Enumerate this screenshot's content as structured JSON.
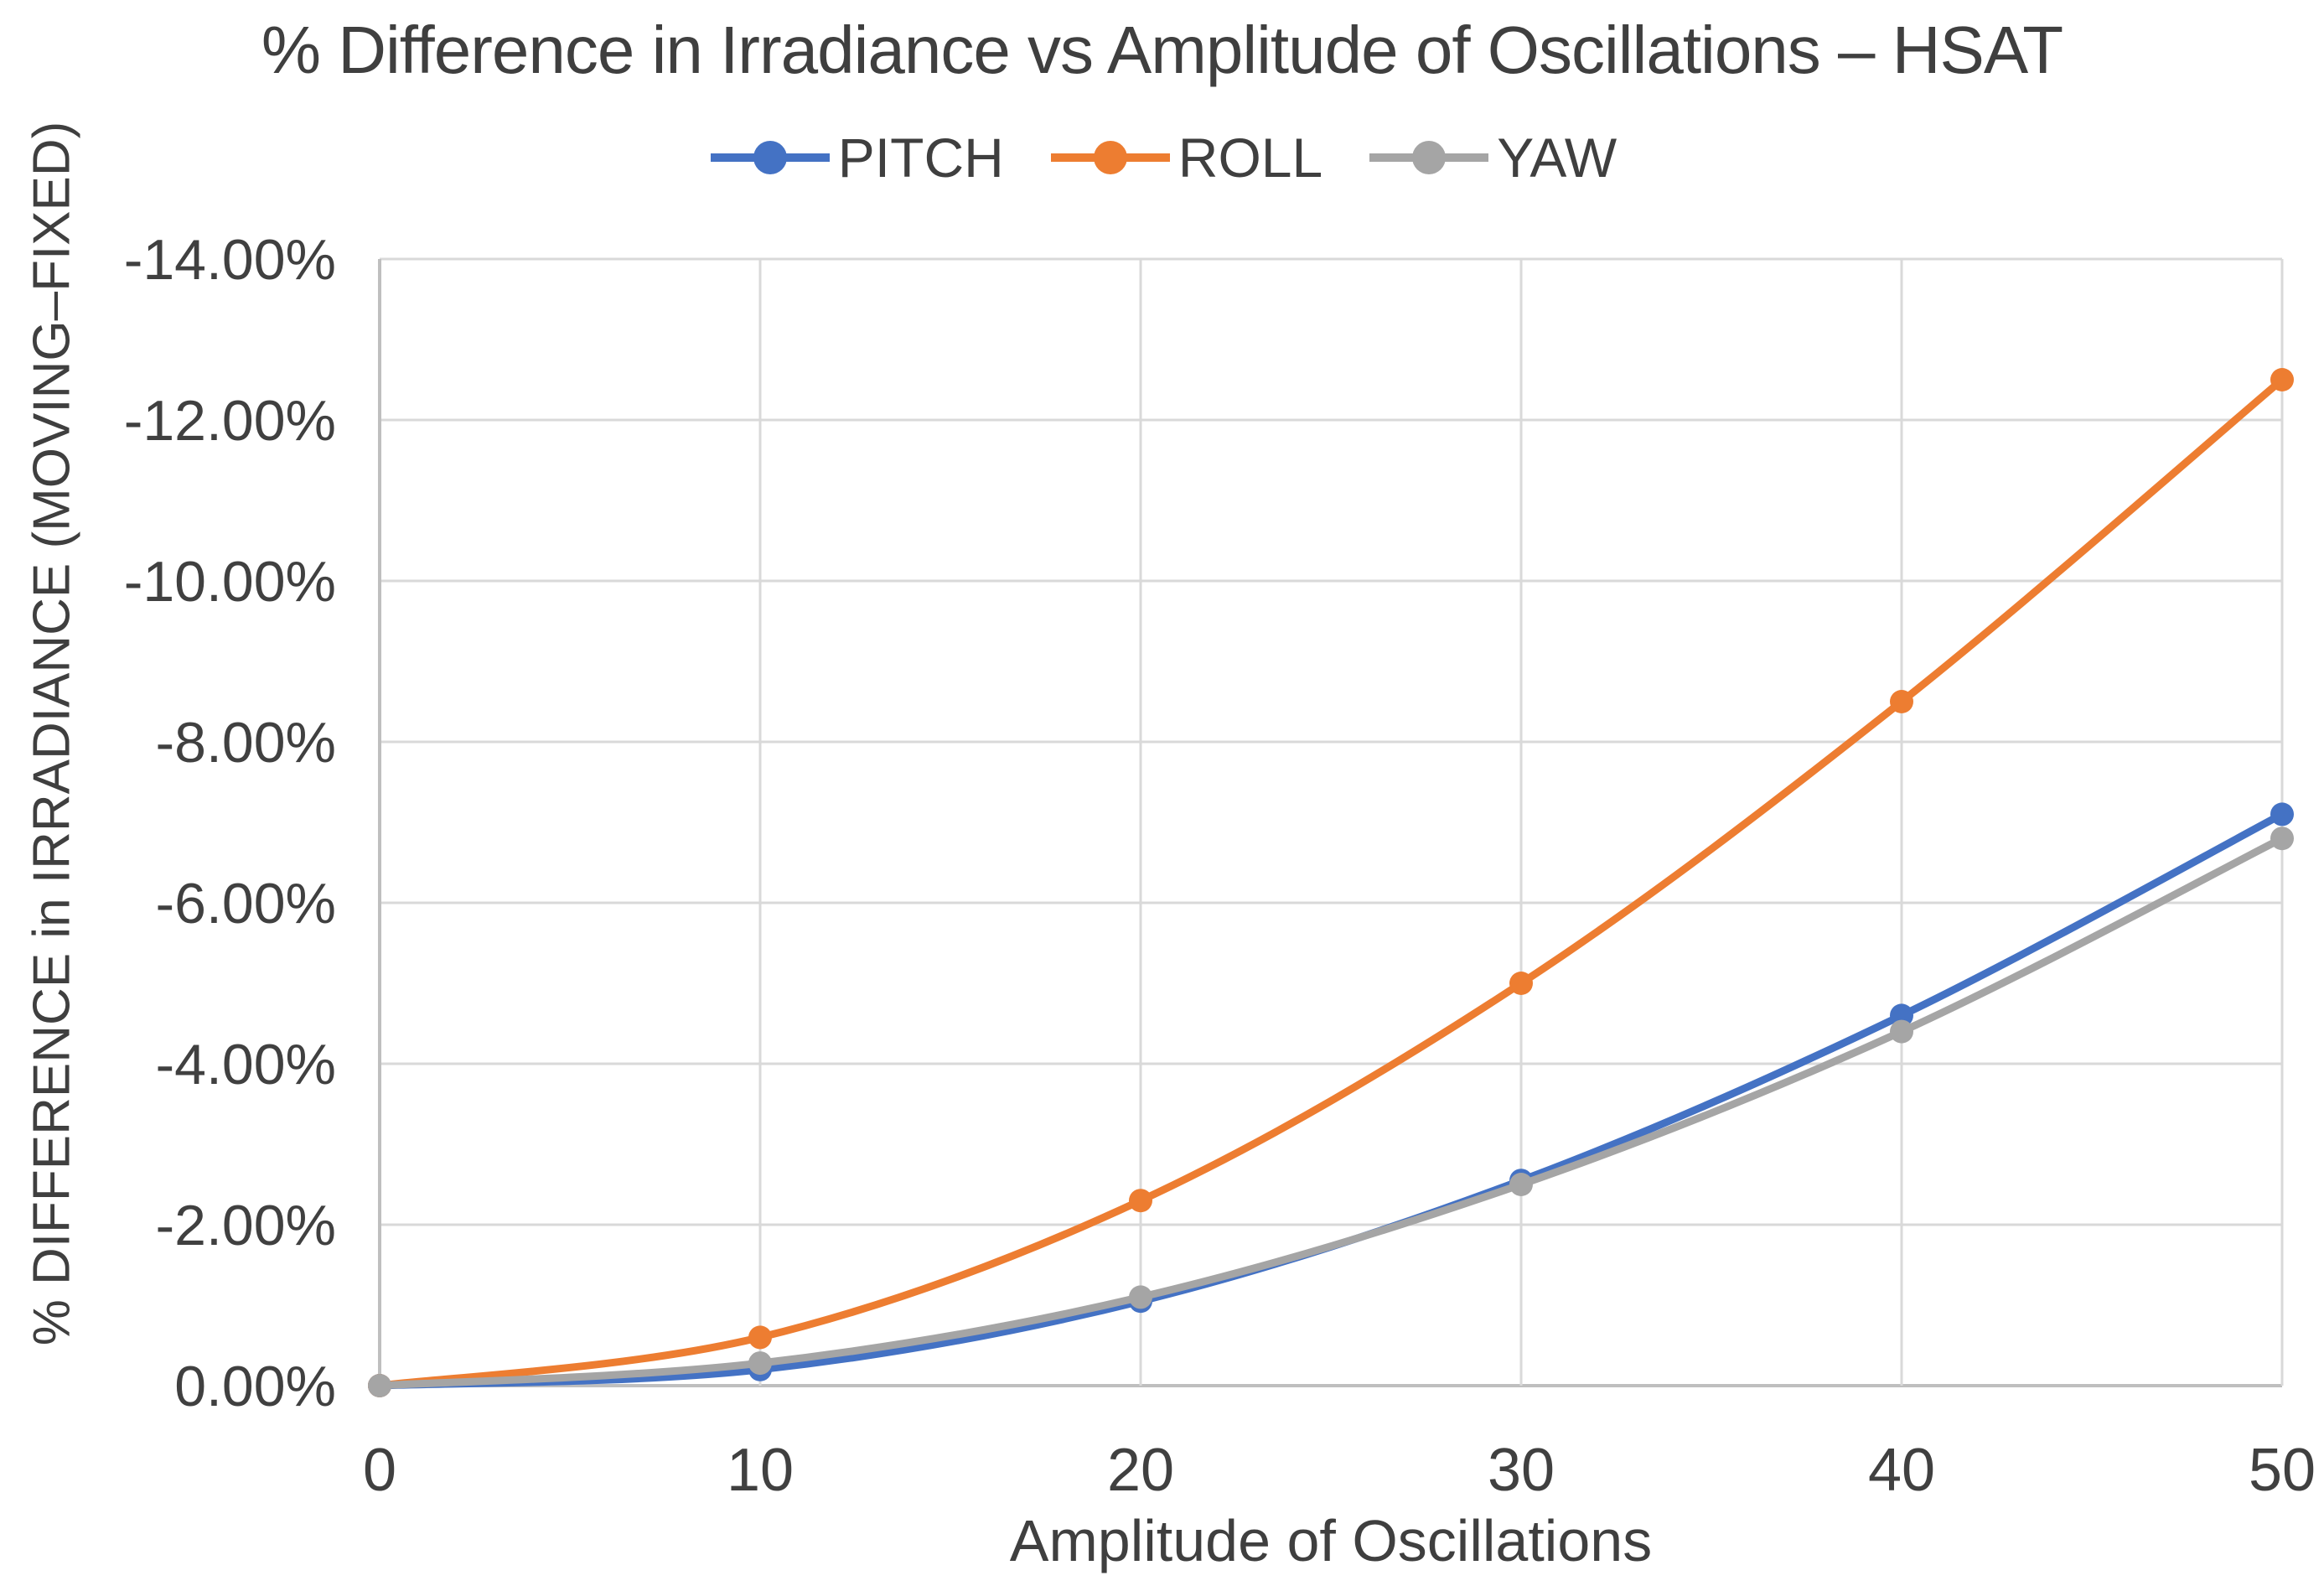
{
  "chart_data": {
    "type": "line",
    "title": "% Difference in Irradiance vs Amplitude of Oscillations – HSAT",
    "xlabel": "Amplitude of Oscillations",
    "ylabel": "% DIFFERENCE in IRRADIANCE (MOVING–FIXED)",
    "x": [
      0,
      10,
      20,
      30,
      40,
      50
    ],
    "xlim": [
      0,
      50
    ],
    "ylim": [
      0,
      -14
    ],
    "x_tick_labels": [
      "0",
      "10",
      "20",
      "30",
      "40",
      "50"
    ],
    "y_ticks": [
      0,
      -2,
      -4,
      -6,
      -8,
      -10,
      -12,
      -14
    ],
    "y_tick_labels": [
      "0.00%",
      "-2.00%",
      "-4.00%",
      "-6.00%",
      "-8.00%",
      "-10.00%",
      "-12.00%",
      "-14.00%"
    ],
    "grid": true,
    "legend_position": "top",
    "series": [
      {
        "name": "PITCH",
        "color": "#4472C4",
        "values": [
          0,
          -0.2,
          -1.05,
          -2.55,
          -4.6,
          -7.1
        ]
      },
      {
        "name": "ROLL",
        "color": "#ED7D31",
        "values": [
          0,
          -0.6,
          -2.3,
          -5.0,
          -8.5,
          -12.5
        ]
      },
      {
        "name": "YAW",
        "color": "#A5A5A5",
        "values": [
          0,
          -0.28,
          -1.1,
          -2.5,
          -4.4,
          -6.8
        ]
      }
    ],
    "colors": {
      "grid": "#D9D9D9",
      "axis": "#BFBFBF",
      "text": "#404040"
    }
  }
}
